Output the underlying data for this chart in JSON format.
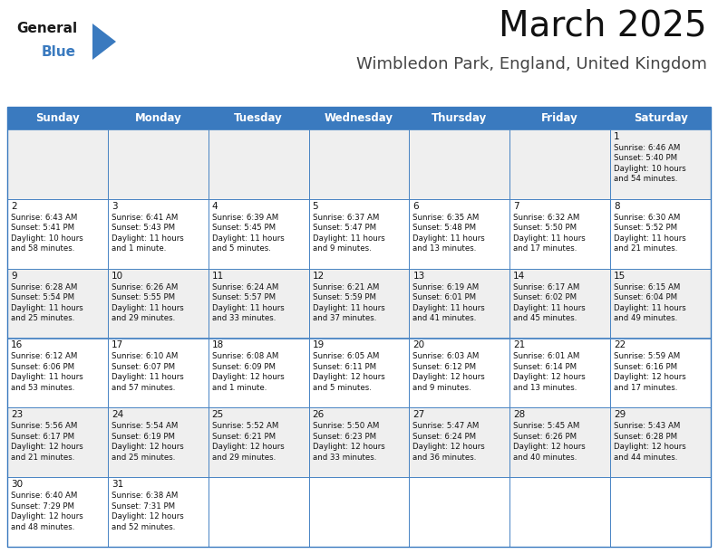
{
  "title": "March 2025",
  "subtitle": "Wimbledon Park, England, United Kingdom",
  "days_of_week": [
    "Sunday",
    "Monday",
    "Tuesday",
    "Wednesday",
    "Thursday",
    "Friday",
    "Saturday"
  ],
  "header_bg": "#3a7abf",
  "header_text": "#ffffff",
  "odd_row_bg": "#efefef",
  "even_row_bg": "#ffffff",
  "border_color": "#3a7abf",
  "cell_text_color": "#111111",
  "title_color": "#111111",
  "subtitle_color": "#444444",
  "calendar": [
    [
      "",
      "",
      "",
      "",
      "",
      "",
      "1\nSunrise: 6:46 AM\nSunset: 5:40 PM\nDaylight: 10 hours\nand 54 minutes."
    ],
    [
      "2\nSunrise: 6:43 AM\nSunset: 5:41 PM\nDaylight: 10 hours\nand 58 minutes.",
      "3\nSunrise: 6:41 AM\nSunset: 5:43 PM\nDaylight: 11 hours\nand 1 minute.",
      "4\nSunrise: 6:39 AM\nSunset: 5:45 PM\nDaylight: 11 hours\nand 5 minutes.",
      "5\nSunrise: 6:37 AM\nSunset: 5:47 PM\nDaylight: 11 hours\nand 9 minutes.",
      "6\nSunrise: 6:35 AM\nSunset: 5:48 PM\nDaylight: 11 hours\nand 13 minutes.",
      "7\nSunrise: 6:32 AM\nSunset: 5:50 PM\nDaylight: 11 hours\nand 17 minutes.",
      "8\nSunrise: 6:30 AM\nSunset: 5:52 PM\nDaylight: 11 hours\nand 21 minutes."
    ],
    [
      "9\nSunrise: 6:28 AM\nSunset: 5:54 PM\nDaylight: 11 hours\nand 25 minutes.",
      "10\nSunrise: 6:26 AM\nSunset: 5:55 PM\nDaylight: 11 hours\nand 29 minutes.",
      "11\nSunrise: 6:24 AM\nSunset: 5:57 PM\nDaylight: 11 hours\nand 33 minutes.",
      "12\nSunrise: 6:21 AM\nSunset: 5:59 PM\nDaylight: 11 hours\nand 37 minutes.",
      "13\nSunrise: 6:19 AM\nSunset: 6:01 PM\nDaylight: 11 hours\nand 41 minutes.",
      "14\nSunrise: 6:17 AM\nSunset: 6:02 PM\nDaylight: 11 hours\nand 45 minutes.",
      "15\nSunrise: 6:15 AM\nSunset: 6:04 PM\nDaylight: 11 hours\nand 49 minutes."
    ],
    [
      "16\nSunrise: 6:12 AM\nSunset: 6:06 PM\nDaylight: 11 hours\nand 53 minutes.",
      "17\nSunrise: 6:10 AM\nSunset: 6:07 PM\nDaylight: 11 hours\nand 57 minutes.",
      "18\nSunrise: 6:08 AM\nSunset: 6:09 PM\nDaylight: 12 hours\nand 1 minute.",
      "19\nSunrise: 6:05 AM\nSunset: 6:11 PM\nDaylight: 12 hours\nand 5 minutes.",
      "20\nSunrise: 6:03 AM\nSunset: 6:12 PM\nDaylight: 12 hours\nand 9 minutes.",
      "21\nSunrise: 6:01 AM\nSunset: 6:14 PM\nDaylight: 12 hours\nand 13 minutes.",
      "22\nSunrise: 5:59 AM\nSunset: 6:16 PM\nDaylight: 12 hours\nand 17 minutes."
    ],
    [
      "23\nSunrise: 5:56 AM\nSunset: 6:17 PM\nDaylight: 12 hours\nand 21 minutes.",
      "24\nSunrise: 5:54 AM\nSunset: 6:19 PM\nDaylight: 12 hours\nand 25 minutes.",
      "25\nSunrise: 5:52 AM\nSunset: 6:21 PM\nDaylight: 12 hours\nand 29 minutes.",
      "26\nSunrise: 5:50 AM\nSunset: 6:23 PM\nDaylight: 12 hours\nand 33 minutes.",
      "27\nSunrise: 5:47 AM\nSunset: 6:24 PM\nDaylight: 12 hours\nand 36 minutes.",
      "28\nSunrise: 5:45 AM\nSunset: 6:26 PM\nDaylight: 12 hours\nand 40 minutes.",
      "29\nSunrise: 5:43 AM\nSunset: 6:28 PM\nDaylight: 12 hours\nand 44 minutes."
    ],
    [
      "30\nSunrise: 6:40 AM\nSunset: 7:29 PM\nDaylight: 12 hours\nand 48 minutes.",
      "31\nSunrise: 6:38 AM\nSunset: 7:31 PM\nDaylight: 12 hours\nand 52 minutes.",
      "",
      "",
      "",
      "",
      ""
    ]
  ],
  "figsize": [
    7.92,
    6.12
  ],
  "dpi": 100,
  "logo_general_color": "#1a1a1a",
  "logo_blue_color": "#3a7abf",
  "logo_triangle_color": "#3a7abf"
}
